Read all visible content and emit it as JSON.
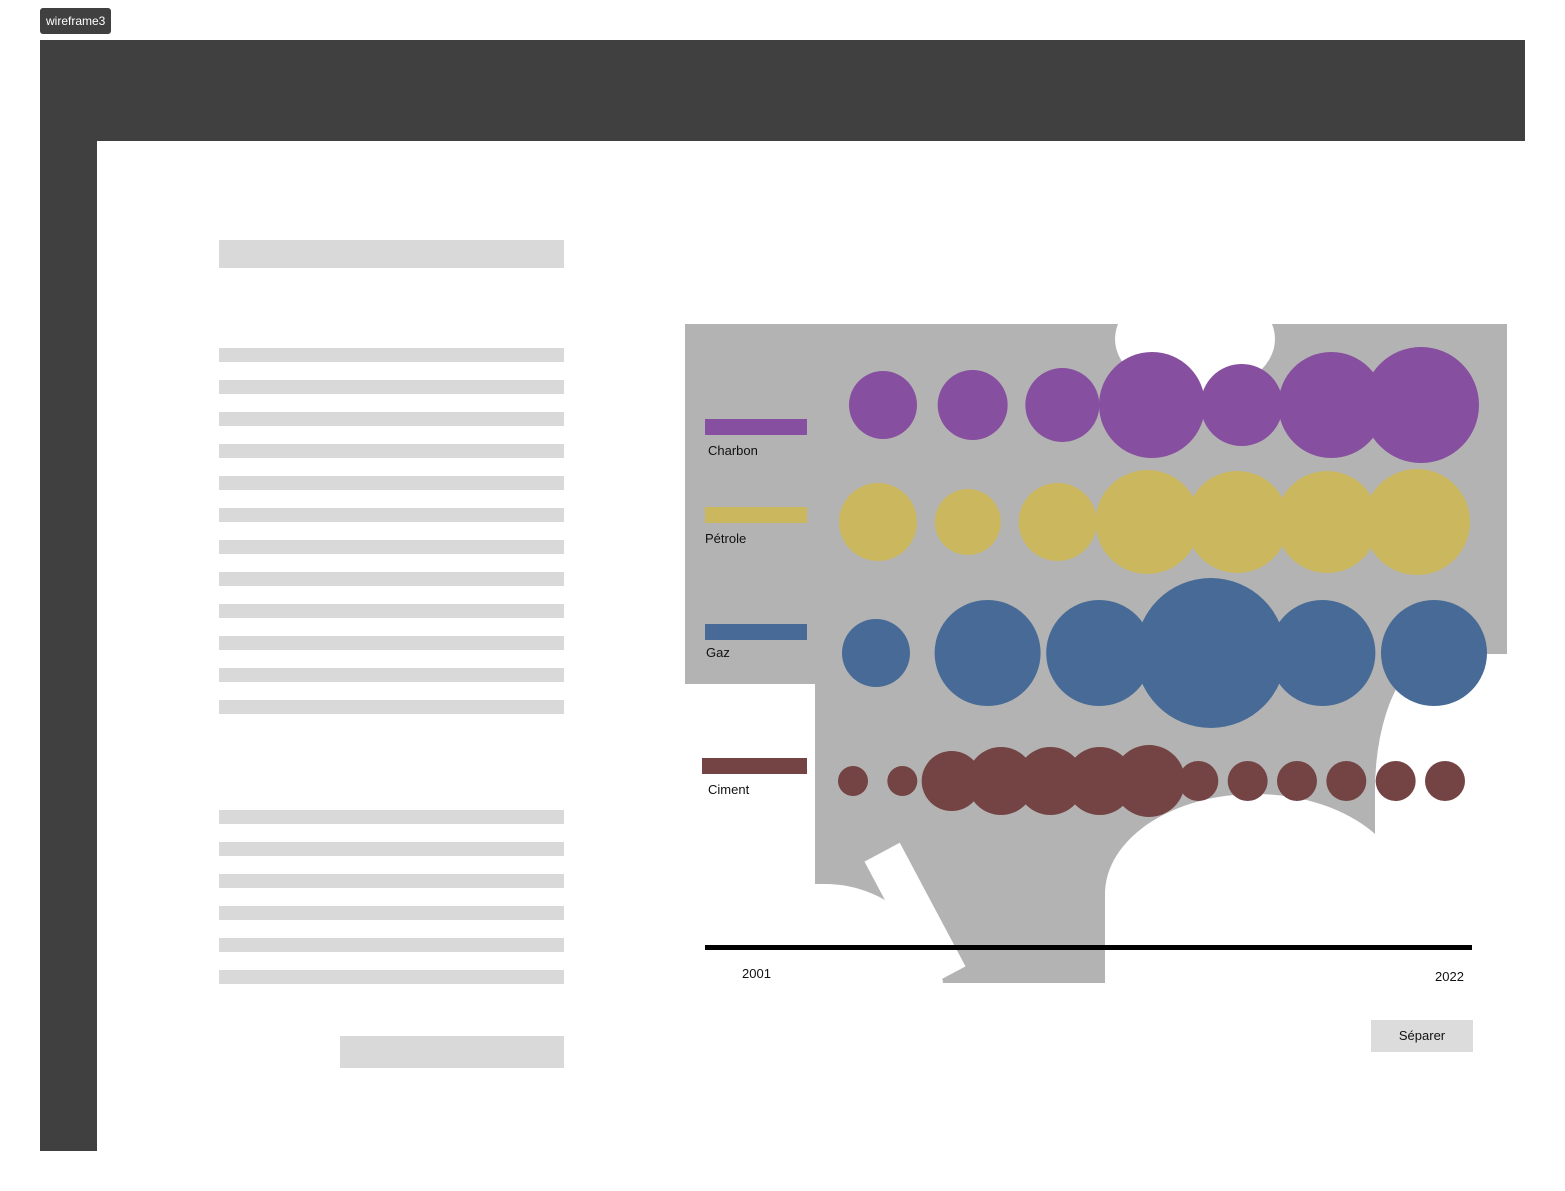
{
  "frame": {
    "name": "wireframe3"
  },
  "legend": [
    {
      "label": "Charbon",
      "color": "#874f9f"
    },
    {
      "label": "Pétrole",
      "color": "#cbb85e"
    },
    {
      "label": "Gaz",
      "color": "#476b96"
    },
    {
      "label": "Ciment",
      "color": "#734443"
    }
  ],
  "timeline": {
    "start": "2001",
    "end": "2022"
  },
  "actions": {
    "split_label": "Séparer"
  },
  "chart_data": {
    "type": "bubble",
    "series": [
      {
        "name": "Charbon",
        "color": "#874f9f",
        "sizes": [
          34,
          35,
          37,
          53,
          41,
          53,
          58
        ]
      },
      {
        "name": "Pétrole",
        "color": "#cbb85e",
        "sizes": [
          39,
          33,
          39,
          52,
          51,
          51,
          53
        ]
      },
      {
        "name": "Gaz",
        "color": "#476b96",
        "sizes": [
          34,
          53,
          53,
          75,
          53,
          53
        ]
      },
      {
        "name": "Ciment",
        "color": "#734443",
        "sizes": [
          15,
          15,
          30,
          34,
          34,
          34,
          36,
          20,
          20,
          20,
          20,
          20,
          20
        ]
      }
    ],
    "x_range": [
      "2001",
      "2022"
    ]
  }
}
